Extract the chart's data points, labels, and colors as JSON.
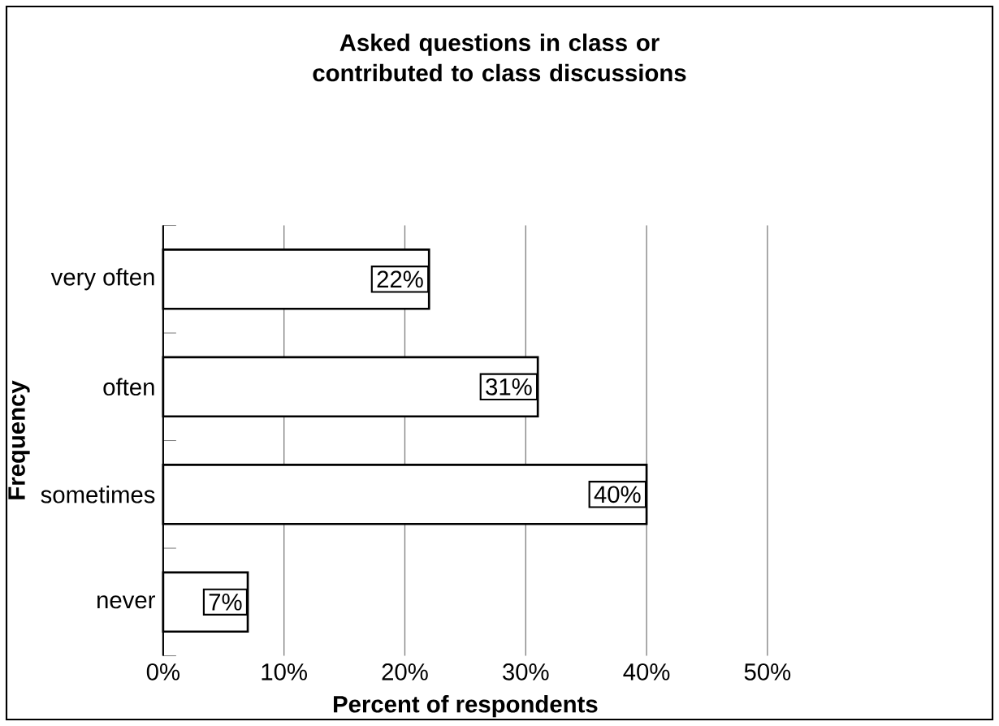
{
  "chart_data": {
    "type": "bar",
    "orientation": "horizontal",
    "title": "Asked questions in class or contributed to class discussions",
    "xlabel": "Percent of respondents",
    "ylabel": "Frequency",
    "categories": [
      "very often",
      "often",
      "sometimes",
      "never"
    ],
    "values": [
      22,
      31,
      40,
      7
    ],
    "value_labels": [
      "22%",
      "31%",
      "40%",
      "7%"
    ],
    "color": "#ffffff",
    "xlim": [
      0,
      50
    ],
    "xticks": [
      {
        "value": 0,
        "label": "0%"
      },
      {
        "value": 10,
        "label": "10%"
      },
      {
        "value": 20,
        "label": "20%"
      },
      {
        "value": 30,
        "label": "30%"
      },
      {
        "value": 40,
        "label": "40%"
      },
      {
        "value": 50,
        "label": "50%"
      }
    ],
    "grid": "x"
  }
}
